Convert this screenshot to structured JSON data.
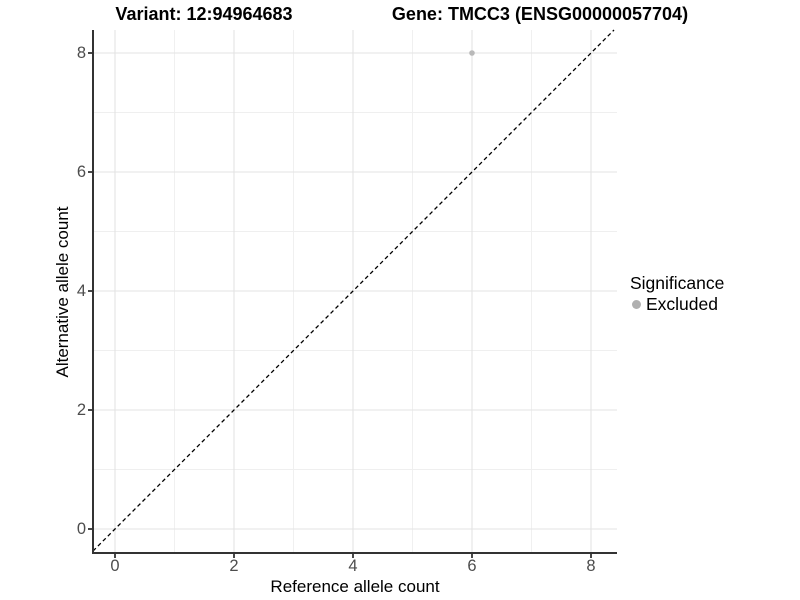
{
  "titles": {
    "variant": "Variant: 12:94964683",
    "gene": "Gene: TMCC3 (ENSG00000057704)"
  },
  "legend": {
    "title": "Significance",
    "items": [
      {
        "label": "Excluded",
        "color": "#b0b0b0"
      }
    ]
  },
  "colors": {
    "background": "#ffffff",
    "axis_line": "#333333",
    "tick_label": "#4d4d4d",
    "grid_major": "#e3e3e3",
    "grid_minor": "#efefef",
    "point": "#b9b9b9",
    "reference_line": "#000000"
  },
  "chart_data": {
    "type": "scatter",
    "title": "Variant: 12:94964683    Gene: TMCC3 (ENSG00000057704)",
    "xlabel": "Reference allele count",
    "ylabel": "Alternative allele count",
    "x_ticks": [
      0,
      2,
      4,
      6,
      8
    ],
    "y_ticks": [
      0,
      2,
      4,
      6,
      8
    ],
    "x_minor_ticks": [
      1,
      3,
      5,
      7
    ],
    "y_minor_ticks": [
      1,
      3,
      5,
      7
    ],
    "xlim": [
      -0.4,
      8.44
    ],
    "ylim": [
      -0.4,
      8.39
    ],
    "grid": true,
    "legend_position": "right",
    "legend_title": "Significance",
    "series": [
      {
        "name": "Excluded",
        "color": "#b9b9b9",
        "points": [
          {
            "x": 6,
            "y": 8
          }
        ]
      }
    ],
    "reference_line": {
      "kind": "identity",
      "slope": 1,
      "intercept": 0,
      "style": "dashed",
      "color": "#000000"
    }
  }
}
